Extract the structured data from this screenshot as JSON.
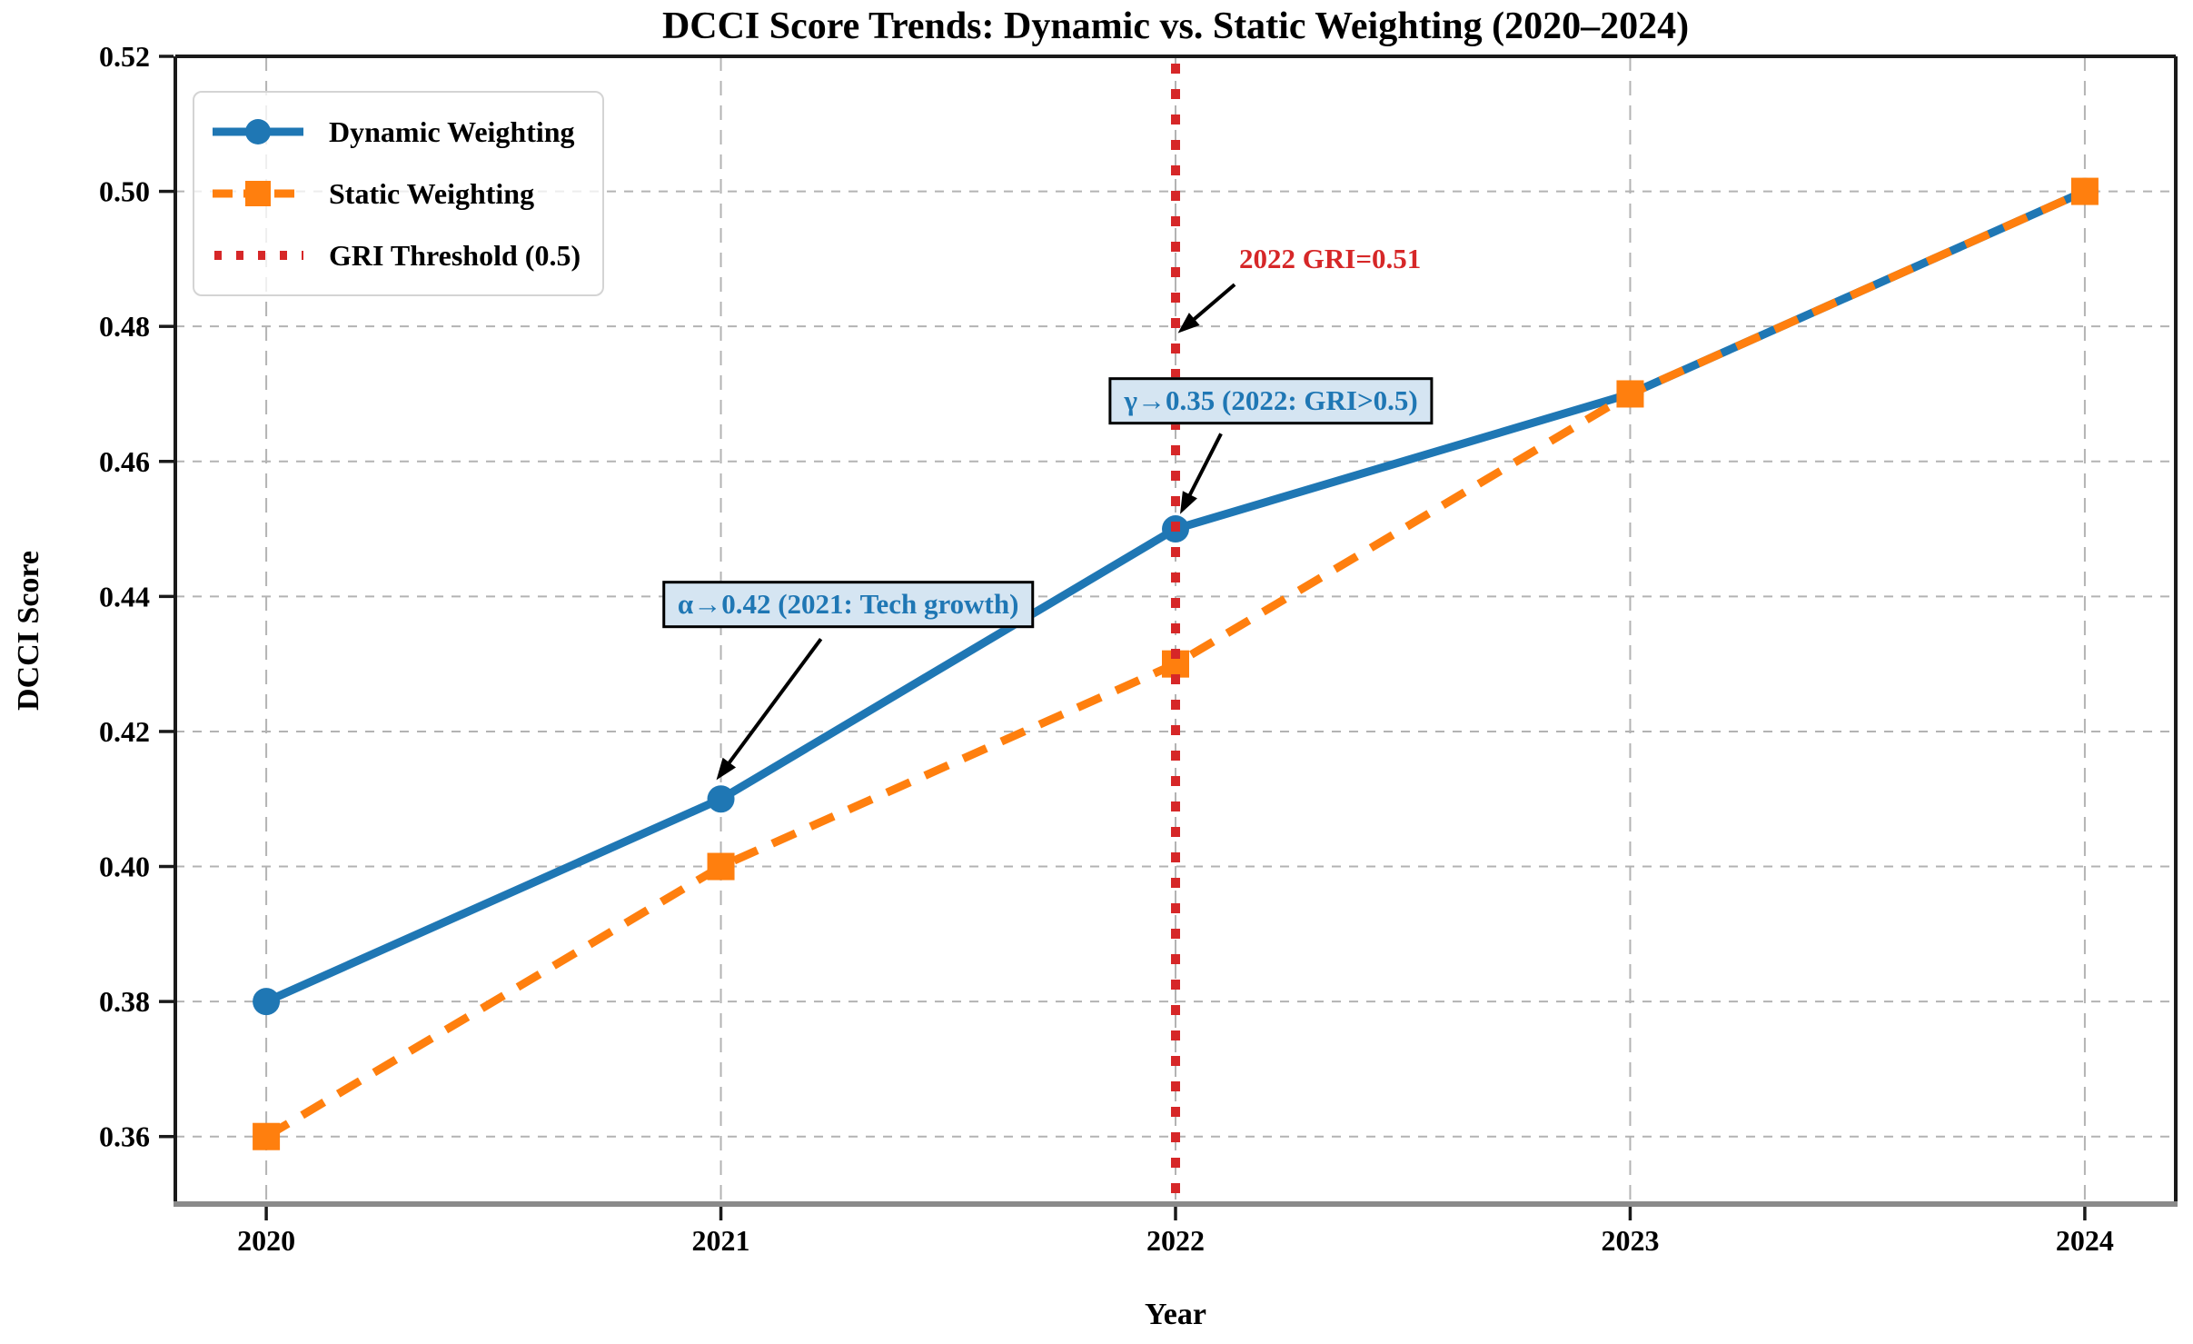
{
  "colors": {
    "dynamic_blue": "#1f77b4",
    "static_orange": "#ff7f0e",
    "threshold_red": "#d62728",
    "grid_gray": "#b3b3b3",
    "spine_dark": "#1a1a1a",
    "bottom_spine_gray": "#8a8a8a",
    "annotation_box_bg": "#d5e5f2",
    "arrow_black": "#000000"
  },
  "legend": {
    "items": [
      {
        "label": "Dynamic Weighting"
      },
      {
        "label": "Static Weighting"
      },
      {
        "label": "GRI Threshold (0.5)"
      }
    ]
  },
  "chart_data": {
    "type": "line",
    "title": "DCCI Score Trends: Dynamic vs. Static Weighting (2020–2024)",
    "xlabel": "Year",
    "ylabel": "DCCI Score",
    "x": [
      2020,
      2021,
      2022,
      2023,
      2024
    ],
    "series": [
      {
        "name": "Dynamic Weighting",
        "style": "solid",
        "marker": "circle",
        "values": [
          0.38,
          0.41,
          0.45,
          0.47,
          0.5
        ]
      },
      {
        "name": "Static Weighting",
        "style": "dashed",
        "marker": "square",
        "values": [
          0.36,
          0.4,
          0.43,
          0.47,
          0.5
        ]
      }
    ],
    "threshold": {
      "x": 2022,
      "label": "GRI Threshold (0.5)",
      "style": "dotted"
    },
    "annotations": [
      {
        "id": "gri",
        "text": "2022 GRI=0.51",
        "boxed": false,
        "center": [
          2022.34,
          0.49
        ],
        "arrow_from": [
          2022.13,
          0.4862
        ],
        "arrow_to": [
          2022.005,
          0.479
        ]
      },
      {
        "id": "gamma",
        "text": "γ→0.35 (2022: GRI>0.5)",
        "boxed": true,
        "center": [
          2022.21,
          0.469
        ],
        "arrow_from": [
          2022.1,
          0.4641
        ],
        "arrow_to": [
          2022.01,
          0.4522
        ]
      },
      {
        "id": "alpha",
        "text": "α→0.42 (2021: Tech growth)",
        "boxed": true,
        "center": [
          2021.28,
          0.4388
        ],
        "arrow_from": [
          2021.22,
          0.4337
        ],
        "arrow_to": [
          2020.99,
          0.4128
        ]
      }
    ],
    "xlim": [
      2019.8,
      2024.2
    ],
    "ylim": [
      0.35,
      0.52
    ],
    "xticks": [
      2020,
      2021,
      2022,
      2023,
      2024
    ],
    "yticks": [
      0.36,
      0.38,
      0.4,
      0.42,
      0.44,
      0.46,
      0.48,
      0.5,
      0.52
    ],
    "grid": true,
    "legend_position": "upper-left"
  }
}
